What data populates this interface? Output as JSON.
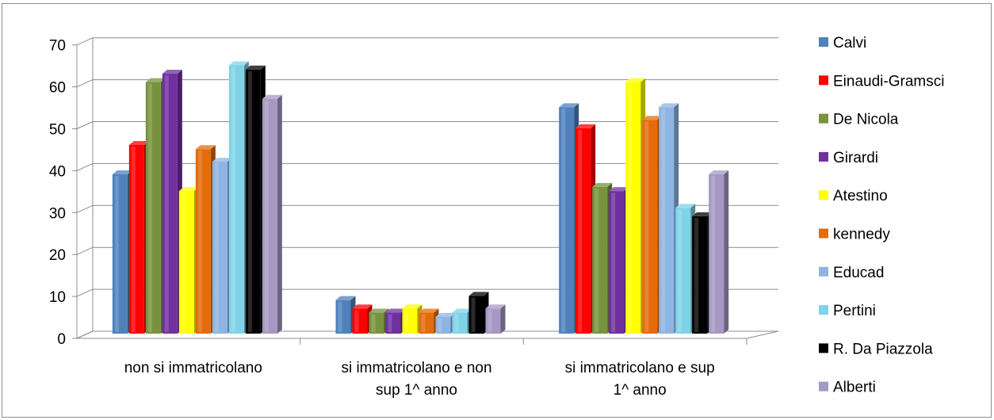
{
  "chart_data": {
    "type": "bar",
    "title": "",
    "xlabel": "",
    "ylabel": "",
    "ylim": [
      0,
      70
    ],
    "yticks": [
      0,
      10,
      20,
      30,
      40,
      50,
      60,
      70
    ],
    "grid": true,
    "style": "3d-clustered-column",
    "legend_position": "right",
    "categories": [
      [
        "non si immatricolano"
      ],
      [
        "si immatricolano e non",
        "sup 1^ anno"
      ],
      [
        "si immatricolano e sup",
        "1^ anno"
      ]
    ],
    "series": [
      {
        "name": "Calvi",
        "color": "#4f81bd",
        "values": [
          38,
          8,
          54
        ]
      },
      {
        "name": "Einaudi-Gramsci",
        "color": "#ff0000",
        "values": [
          45,
          6,
          49
        ]
      },
      {
        "name": "De Nicola",
        "color": "#77933c",
        "values": [
          60,
          5,
          35
        ]
      },
      {
        "name": "Girardi",
        "color": "#7030a0",
        "values": [
          62,
          5,
          34
        ]
      },
      {
        "name": "Atestino",
        "color": "#ffff00",
        "values": [
          34,
          6,
          60
        ]
      },
      {
        "name": "kennedy",
        "color": "#e46c0a",
        "values": [
          44,
          5,
          51
        ]
      },
      {
        "name": "Educad",
        "color": "#8eb4e3",
        "values": [
          41,
          4,
          54
        ]
      },
      {
        "name": "Pertini",
        "color": "#7fd3e6",
        "values": [
          64,
          5,
          30
        ]
      },
      {
        "name": "R. Da Piazzola",
        "color": "#000000",
        "values": [
          63,
          9,
          28
        ]
      },
      {
        "name": "Alberti",
        "color": "#a599c4",
        "values": [
          56,
          6,
          38
        ]
      }
    ]
  }
}
